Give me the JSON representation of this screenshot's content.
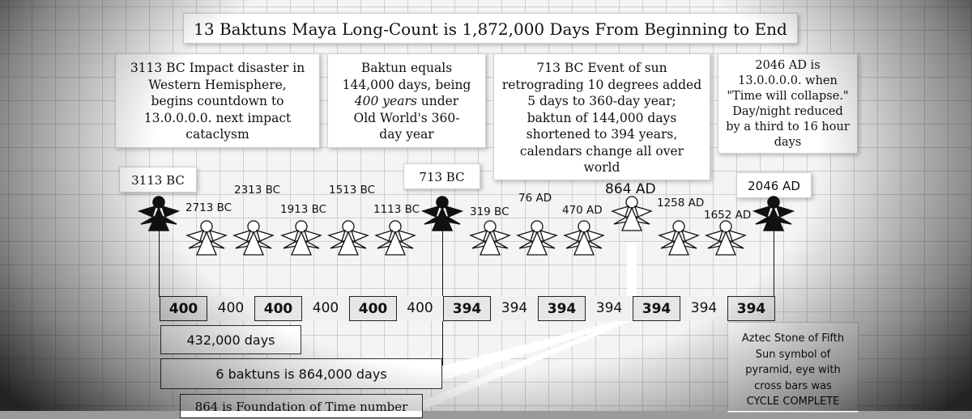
{
  "title": "13 Baktuns Maya Long-Count is 1,872,000 Days From Beginning to End",
  "notes": {
    "impact_3113": [
      "3113 BC Impact disaster in",
      "Western Hemisphere,",
      "begins countdown to",
      "13.0.0.0.0. next impact",
      "cataclysm"
    ],
    "baktun": [
      "Baktun equals",
      "144,000 days, being",
      "400 years",
      " under",
      "Old World's 360-",
      "day year"
    ],
    "event_713": [
      "713 BC Event of sun",
      "retrograding 10 degrees added",
      "5 days to 360-day year;",
      "baktun of 144,000 days",
      "shortened to 394 years,",
      "calendars change all over",
      "world"
    ],
    "ad_2046": [
      "2046 AD is",
      "13.0.0.0.0. when",
      "\"Time will collapse.\"",
      "Day/night reduced",
      "by a third to 16 hour",
      "days"
    ]
  },
  "boxed_years": {
    "y3113": "3113 BC",
    "y713": "713 BC",
    "y2046": "2046 AD"
  },
  "year_labels": [
    "2713 BC",
    "2313 BC",
    "1913 BC",
    "1513 BC",
    "1113 BC",
    "319 BC",
    "76 AD",
    "470 AD",
    "864 AD",
    "1258 AD",
    "1652 AD"
  ],
  "segments": [
    "400",
    "400",
    "400",
    "400",
    "400",
    "400",
    "394",
    "394",
    "394",
    "394",
    "394",
    "394",
    "394"
  ],
  "days": {
    "d432": "432,000 days",
    "d864": "6 baktuns is 864,000 days",
    "foundation": "864 is Foundation of Time number"
  },
  "aztec": [
    "Aztec Stone of Fifth",
    "Sun symbol of",
    "pyramid, eye with",
    "cross bars was",
    "CYCLE COMPLETE"
  ],
  "colors": {
    "dark_figure": "#111111",
    "light_figure": "#ffffff",
    "grid": "#cfcfcf"
  }
}
